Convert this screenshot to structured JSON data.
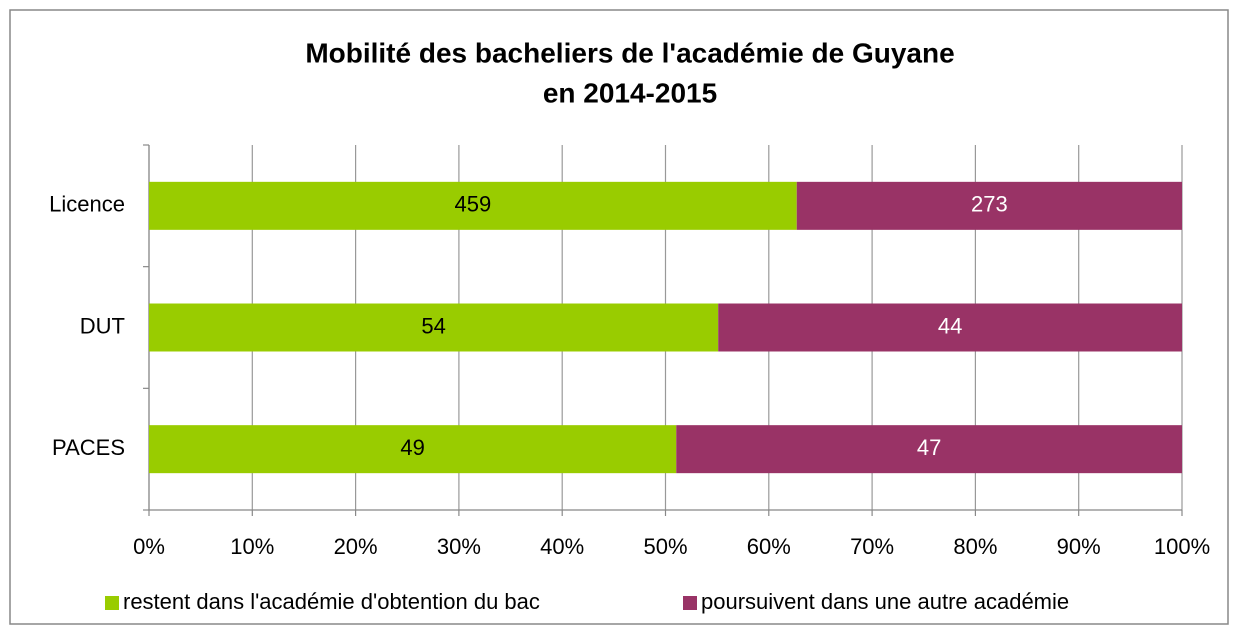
{
  "chart_data": {
    "type": "stacked_bar_horizontal_percent",
    "title": [
      "Mobilité des bacheliers de l'académie de Guyane",
      "en 2014-2015"
    ],
    "categories": [
      "Licence",
      "DUT",
      "PACES"
    ],
    "series": [
      {
        "name": "restent dans l'académie d'obtention du bac",
        "color": "#99cc00",
        "label_color": "#000000",
        "values": [
          459,
          54,
          49
        ]
      },
      {
        "name": "poursuivent dans une autre académie",
        "color": "#993366",
        "label_color": "#ffffff",
        "values": [
          273,
          44,
          47
        ]
      }
    ],
    "xlim": [
      0,
      100
    ],
    "xticks": [
      {
        "value": 0,
        "label": "0%"
      },
      {
        "value": 10,
        "label": "10%"
      },
      {
        "value": 20,
        "label": "20%"
      },
      {
        "value": 30,
        "label": "30%"
      },
      {
        "value": 40,
        "label": "40%"
      },
      {
        "value": 50,
        "label": "50%"
      },
      {
        "value": 60,
        "label": "60%"
      },
      {
        "value": 70,
        "label": "70%"
      },
      {
        "value": 80,
        "label": "80%"
      },
      {
        "value": 90,
        "label": "90%"
      },
      {
        "value": 100,
        "label": "100%"
      }
    ],
    "grid": true,
    "legend": "bottom"
  }
}
